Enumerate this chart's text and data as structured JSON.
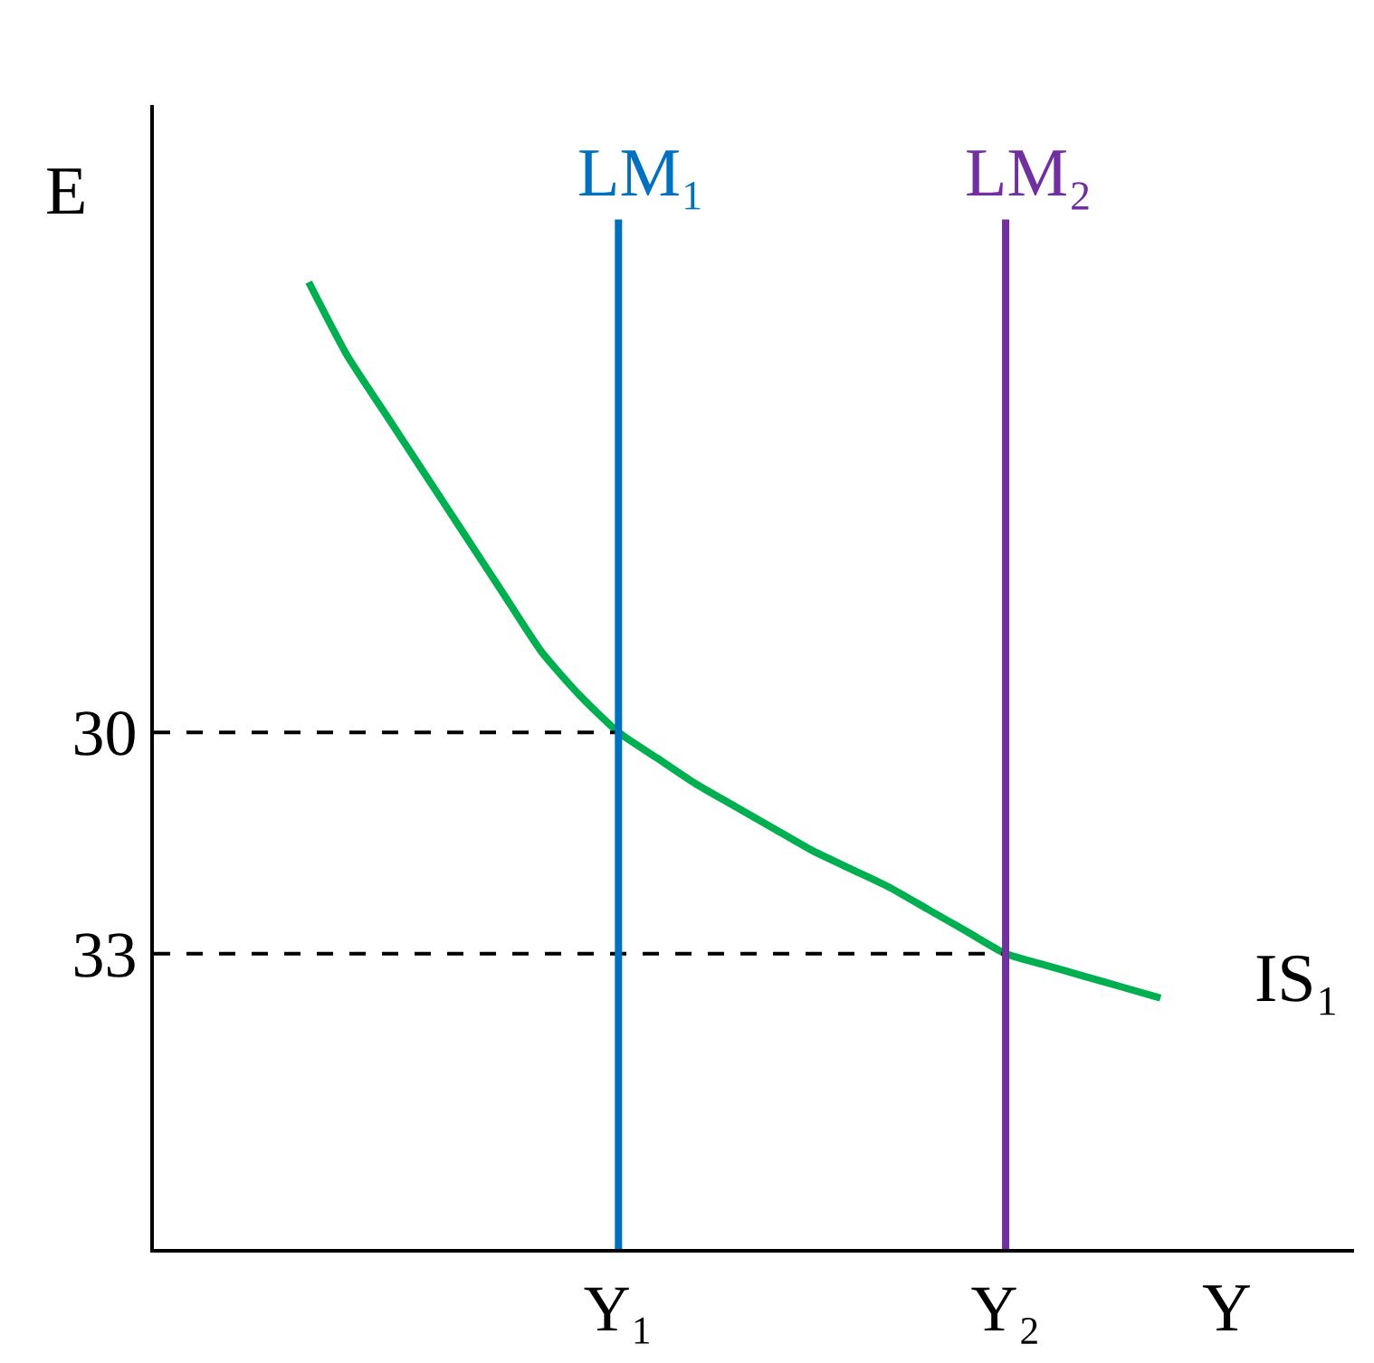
{
  "chart_data": {
    "type": "line",
    "xlabel": "Y",
    "ylabel": "E",
    "categories": [
      null,
      null,
      null,
      null,
      null,
      null,
      null,
      null,
      null,
      null,
      null,
      null,
      "Y₁",
      null,
      null,
      null,
      null,
      null,
      null,
      null,
      null,
      null,
      "Y₂",
      null,
      null,
      null,
      null,
      null,
      null,
      null,
      null
    ],
    "ylim": [
      37,
      21.5
    ],
    "yticks": [
      30,
      33
    ],
    "grid": false,
    "legend": false,
    "marker": "none",
    "series": [
      {
        "name": "IS₁",
        "color": "#00b050",
        "values": [
          null,
          null,
          null,
          null,
          23.9,
          24.9,
          25.7,
          26.5,
          27.3,
          28.1,
          28.9,
          29.5,
          30,
          30.35,
          30.7,
          31.0,
          31.3,
          31.6,
          31.85,
          32.1,
          32.4,
          32.7,
          33,
          33.15,
          33.3,
          33.45,
          33.6,
          null,
          null,
          null,
          null
        ]
      },
      {
        "color": "#000000",
        "line_style": "dashed",
        "values": [
          30,
          30,
          30,
          30,
          30,
          30,
          30,
          30,
          30,
          30,
          30,
          30,
          30,
          null,
          null,
          null,
          null,
          null,
          null,
          null,
          null,
          null,
          null,
          null,
          null,
          null,
          null,
          null,
          null,
          null,
          null
        ]
      },
      {
        "color": "#000000",
        "line_style": "dashed",
        "values": [
          33,
          33,
          33,
          33,
          33,
          33,
          33,
          33,
          33,
          33,
          33,
          33,
          33,
          33,
          33,
          33,
          33,
          33,
          33,
          33,
          33,
          33,
          33,
          null,
          null,
          null,
          null,
          null,
          null,
          null,
          null
        ]
      }
    ],
    "ref_lines": [
      {
        "axis": "x",
        "value": "Y₁",
        "label": "LM₁",
        "color": "#0070c0"
      },
      {
        "axis": "x",
        "value": "Y₂",
        "label": "LM₂",
        "color": "#7030a0"
      }
    ]
  }
}
